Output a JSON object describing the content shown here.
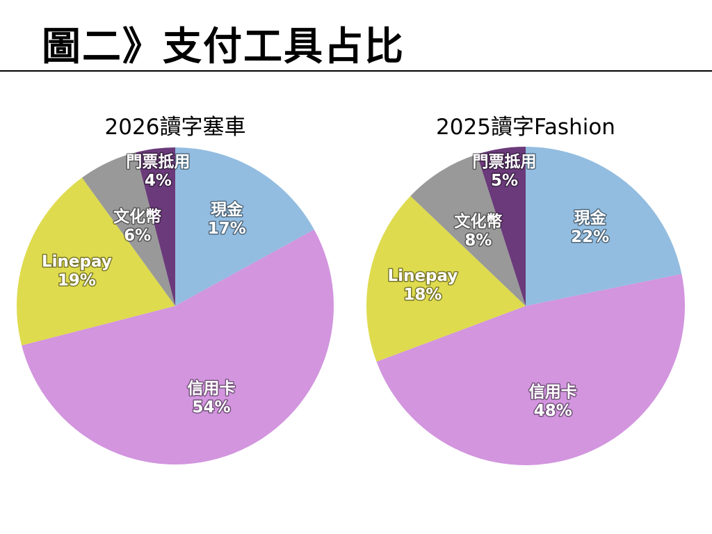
{
  "page": {
    "title": "圖二》支付工具占比"
  },
  "chart_data": [
    {
      "type": "pie",
      "title": "2026讀字塞車",
      "slices": [
        {
          "label": "現金",
          "value": 17,
          "value_label": "17%",
          "color": "#93BDE0"
        },
        {
          "label": "信用卡",
          "value": 54,
          "value_label": "54%",
          "color": "#D295DE"
        },
        {
          "label": "Linepay",
          "value": 19,
          "value_label": "19%",
          "color": "#DEDB4E"
        },
        {
          "label": "文化幣",
          "value": 6,
          "value_label": "6%",
          "color": "#999999"
        },
        {
          "label": "門票抵用",
          "value": 4,
          "value_label": "4%",
          "color": "#6A3A7A"
        }
      ]
    },
    {
      "type": "pie",
      "title": "2025讀字Fashion",
      "slices": [
        {
          "label": "現金",
          "value": 22,
          "value_label": "22%",
          "color": "#93BDE0"
        },
        {
          "label": "信用卡",
          "value": 48,
          "value_label": "48%",
          "color": "#D295DE"
        },
        {
          "label": "Linepay",
          "value": 18,
          "value_label": "18%",
          "color": "#DEDB4E"
        },
        {
          "label": "文化幣",
          "value": 8,
          "value_label": "8%",
          "color": "#999999"
        },
        {
          "label": "門票抵用",
          "value": 5,
          "value_label": "5%",
          "color": "#6A3A7A"
        }
      ]
    }
  ]
}
